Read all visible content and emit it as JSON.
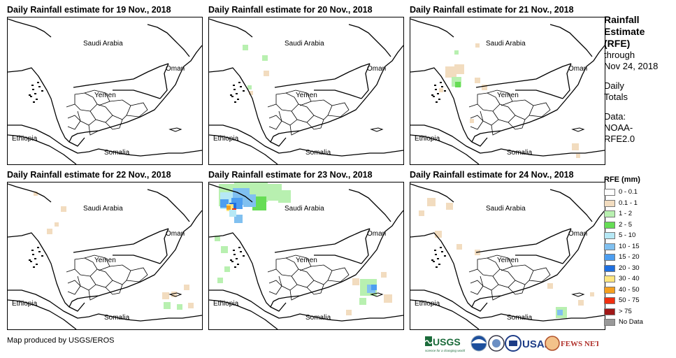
{
  "panels": [
    {
      "title": "Daily Rainfall estimate for 19 Nov., 2018",
      "col": 0,
      "row": 0
    },
    {
      "title": "Daily Rainfall estimate for 20 Nov., 2018",
      "col": 1,
      "row": 0
    },
    {
      "title": "Daily Rainfall estimate for 21 Nov., 2018",
      "col": 2,
      "row": 0
    },
    {
      "title": "Daily Rainfall estimate for 22 Nov., 2018",
      "col": 0,
      "row": 1
    },
    {
      "title": "Daily Rainfall estimate for 23 Nov., 2018",
      "col": 1,
      "row": 1
    },
    {
      "title": "Daily Rainfall estimate for 24 Nov., 2018",
      "col": 2,
      "row": 1
    }
  ],
  "map_labels": {
    "saudi": "Saudi Arabia",
    "oman": "Oman",
    "yemen": "Yemen",
    "ethiopia": "Ethiopia",
    "somalia": "Somalia"
  },
  "sidebar": {
    "title_line1": "Rainfall",
    "title_line2": "Estimate",
    "title_line3": "(RFE)",
    "through": "through",
    "date": "Nov 24, 2018",
    "daily": "Daily",
    "totals": "Totals",
    "data_label": "Data:",
    "data_source1": "NOAA-",
    "data_source2": "RFE2.0"
  },
  "legend": {
    "title": "RFE (mm)",
    "items": [
      {
        "label": "0 - 0.1",
        "color": "#ffffff"
      },
      {
        "label": "0.1 - 1",
        "color": "#f2dcbf"
      },
      {
        "label": "1 - 2",
        "color": "#b8f0b0"
      },
      {
        "label": "2 - 5",
        "color": "#66dd55"
      },
      {
        "label": "5 - 10",
        "color": "#b6e8f5"
      },
      {
        "label": "10 - 15",
        "color": "#80c0f0"
      },
      {
        "label": "15 - 20",
        "color": "#4d9ef0"
      },
      {
        "label": "20 - 30",
        "color": "#1f6fe0"
      },
      {
        "label": "30 - 40",
        "color": "#ffe680"
      },
      {
        "label": "40 - 50",
        "color": "#f5a020"
      },
      {
        "label": "50 - 75",
        "color": "#f03010"
      },
      {
        "label": "> 75",
        "color": "#a01818"
      },
      {
        "label": "No Data",
        "color": "#999999"
      }
    ]
  },
  "credit": "Map produced by USGS/EROS",
  "logos": {
    "usgs": "USGS",
    "usgs_tagline": "science for a changing world",
    "usaid": "USAID",
    "fewsnet": "FEWS NET"
  },
  "rain": {
    "d19": [],
    "d20": [
      {
        "x": 52,
        "y": 43,
        "r": 4,
        "c": "#b8f0b0"
      },
      {
        "x": 80,
        "y": 58,
        "r": 4,
        "c": "#b8f0b0"
      },
      {
        "x": 82,
        "y": 80,
        "r": 4,
        "c": "#f2dcbf"
      },
      {
        "x": 58,
        "y": 100,
        "r": 3,
        "c": "#b8f0b0"
      },
      {
        "x": 60,
        "y": 108,
        "r": 3,
        "c": "#f2dcbf"
      }
    ],
    "d21": [
      {
        "x": 58,
        "y": 78,
        "r": 8,
        "c": "#f2dcbf"
      },
      {
        "x": 70,
        "y": 74,
        "r": 7,
        "c": "#f2dcbf"
      },
      {
        "x": 66,
        "y": 92,
        "r": 7,
        "c": "#b8f0b0"
      },
      {
        "x": 68,
        "y": 96,
        "r": 4,
        "c": "#66dd55"
      },
      {
        "x": 96,
        "y": 90,
        "r": 4,
        "c": "#f2dcbf"
      },
      {
        "x": 106,
        "y": 100,
        "r": 4,
        "c": "#f2dcbf"
      },
      {
        "x": 66,
        "y": 50,
        "r": 3,
        "c": "#b8f0b0"
      },
      {
        "x": 96,
        "y": 40,
        "r": 3,
        "c": "#f2dcbf"
      },
      {
        "x": 44,
        "y": 104,
        "r": 3,
        "c": "#f2dcbf"
      },
      {
        "x": 88,
        "y": 148,
        "r": 3,
        "c": "#f2dcbf"
      },
      {
        "x": 236,
        "y": 185,
        "r": 5,
        "c": "#f2dcbf"
      },
      {
        "x": 240,
        "y": 198,
        "r": 3,
        "c": "#f2dcbf"
      }
    ],
    "d22": [
      {
        "x": 40,
        "y": 16,
        "r": 3,
        "c": "#f2dcbf"
      },
      {
        "x": 80,
        "y": 38,
        "r": 4,
        "c": "#f2dcbf"
      },
      {
        "x": 60,
        "y": 70,
        "r": 4,
        "c": "#f2dcbf"
      },
      {
        "x": 70,
        "y": 60,
        "r": 3,
        "c": "#f2dcbf"
      },
      {
        "x": 226,
        "y": 162,
        "r": 5,
        "c": "#f2dcbf"
      },
      {
        "x": 238,
        "y": 160,
        "r": 4,
        "c": "#f2dcbf"
      },
      {
        "x": 228,
        "y": 176,
        "r": 5,
        "c": "#b8f0b0"
      },
      {
        "x": 246,
        "y": 178,
        "r": 4,
        "c": "#b8f0b0"
      },
      {
        "x": 256,
        "y": 150,
        "r": 4,
        "c": "#f2dcbf"
      },
      {
        "x": 262,
        "y": 176,
        "r": 4,
        "c": "#f2dcbf"
      }
    ],
    "d23": [
      {
        "x": 30,
        "y": 18,
        "r": 16,
        "c": "#b8f0b0"
      },
      {
        "x": 50,
        "y": 14,
        "r": 14,
        "c": "#b8f0b0"
      },
      {
        "x": 70,
        "y": 14,
        "r": 14,
        "c": "#b8f0b0"
      },
      {
        "x": 92,
        "y": 14,
        "r": 12,
        "c": "#b8f0b0"
      },
      {
        "x": 108,
        "y": 20,
        "r": 9,
        "c": "#b8f0b0"
      },
      {
        "x": 72,
        "y": 30,
        "r": 10,
        "c": "#66dd55"
      },
      {
        "x": 28,
        "y": 26,
        "r": 12,
        "c": "#b6e8f5"
      },
      {
        "x": 46,
        "y": 20,
        "r": 12,
        "c": "#80c0f0"
      },
      {
        "x": 58,
        "y": 26,
        "r": 9,
        "c": "#80c0f0"
      },
      {
        "x": 40,
        "y": 30,
        "r": 8,
        "c": "#4d9ef0"
      },
      {
        "x": 22,
        "y": 30,
        "r": 6,
        "c": "#4d9ef0"
      },
      {
        "x": 34,
        "y": 34,
        "r": 5,
        "c": "#1f6fe0"
      },
      {
        "x": 30,
        "y": 36,
        "r": 5,
        "c": "#ffe680"
      },
      {
        "x": 28,
        "y": 36,
        "r": 3,
        "c": "#f5a020"
      },
      {
        "x": 36,
        "y": 40,
        "r": 3,
        "c": "#f03010"
      },
      {
        "x": 42,
        "y": 52,
        "r": 6,
        "c": "#80c0f0"
      },
      {
        "x": 34,
        "y": 44,
        "r": 5,
        "c": "#b6e8f5"
      },
      {
        "x": 22,
        "y": 96,
        "r": 5,
        "c": "#b8f0b0"
      },
      {
        "x": 12,
        "y": 80,
        "r": 4,
        "c": "#b8f0b0"
      },
      {
        "x": 26,
        "y": 124,
        "r": 4,
        "c": "#b8f0b0"
      },
      {
        "x": 16,
        "y": 140,
        "r": 4,
        "c": "#b8f0b0"
      },
      {
        "x": 228,
        "y": 150,
        "r": 12,
        "c": "#b8f0b0"
      },
      {
        "x": 232,
        "y": 152,
        "r": 6,
        "c": "#80c0f0"
      },
      {
        "x": 236,
        "y": 150,
        "r": 4,
        "c": "#4d9ef0"
      },
      {
        "x": 210,
        "y": 142,
        "r": 5,
        "c": "#f2dcbf"
      },
      {
        "x": 256,
        "y": 166,
        "r": 6,
        "c": "#f2dcbf"
      },
      {
        "x": 220,
        "y": 170,
        "r": 5,
        "c": "#b8f0b0"
      },
      {
        "x": 200,
        "y": 186,
        "r": 4,
        "c": "#f2dcbf"
      },
      {
        "x": 250,
        "y": 132,
        "r": 4,
        "c": "#f2dcbf"
      }
    ],
    "d24": [
      {
        "x": 30,
        "y": 28,
        "r": 6,
        "c": "#f2dcbf"
      },
      {
        "x": 56,
        "y": 34,
        "r": 5,
        "c": "#f2dcbf"
      },
      {
        "x": 16,
        "y": 44,
        "r": 4,
        "c": "#f2dcbf"
      },
      {
        "x": 40,
        "y": 74,
        "r": 5,
        "c": "#f2dcbf"
      },
      {
        "x": 70,
        "y": 92,
        "r": 4,
        "c": "#f2dcbf"
      },
      {
        "x": 96,
        "y": 100,
        "r": 4,
        "c": "#f2dcbf"
      },
      {
        "x": 200,
        "y": 148,
        "r": 4,
        "c": "#f2dcbf"
      },
      {
        "x": 216,
        "y": 186,
        "r": 8,
        "c": "#b8f0b0"
      },
      {
        "x": 214,
        "y": 186,
        "r": 4,
        "c": "#80c0f0"
      },
      {
        "x": 244,
        "y": 172,
        "r": 4,
        "c": "#f2dcbf"
      },
      {
        "x": 260,
        "y": 160,
        "r": 3,
        "c": "#f2dcbf"
      }
    ]
  }
}
